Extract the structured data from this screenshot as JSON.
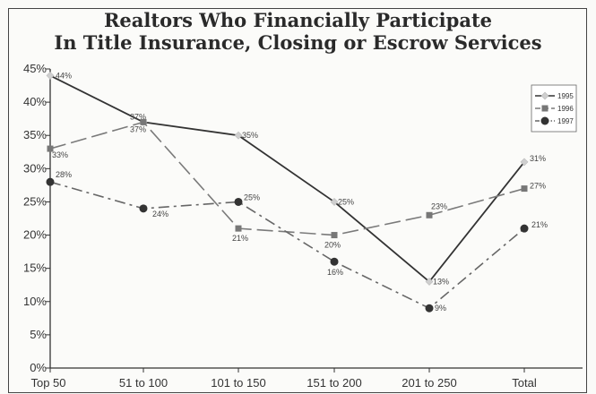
{
  "chart_data": {
    "type": "line",
    "title_line1": "Realtors Who Financially Participate",
    "title_line2": "In Title Insurance, Closing or Escrow Services",
    "categories": [
      "Top 50",
      "51 to 100",
      "101 to 150",
      "151 to 200",
      "201 to 250",
      "Total"
    ],
    "ylim": [
      0,
      45
    ],
    "yticks": [
      "0%",
      "5%",
      "10%",
      "15%",
      "20%",
      "25%",
      "30%",
      "35%",
      "40%",
      "45%"
    ],
    "grid": false,
    "legend_position": "top-right",
    "series": [
      {
        "name": "1995",
        "values": [
          44,
          37,
          35,
          25,
          13,
          31
        ],
        "labels": [
          "44%",
          "37%",
          "35%",
          "25%",
          "13%",
          "31%"
        ],
        "color": "#333333",
        "dash": "solid",
        "marker": "diamond"
      },
      {
        "name": "1996",
        "values": [
          33,
          37,
          21,
          20,
          23,
          27
        ],
        "labels": [
          "33%",
          "37%",
          "21%",
          "20%",
          "23%",
          "27%"
        ],
        "color": "#7a7a7a",
        "dash": "long-dash",
        "marker": "square"
      },
      {
        "name": "1997",
        "values": [
          28,
          24,
          25,
          16,
          9,
          21
        ],
        "labels": [
          "28%",
          "24%",
          "25%",
          "16%",
          "9%",
          "21%"
        ],
        "color": "#666666",
        "dash": "dash-dot",
        "marker": "circle"
      }
    ]
  }
}
